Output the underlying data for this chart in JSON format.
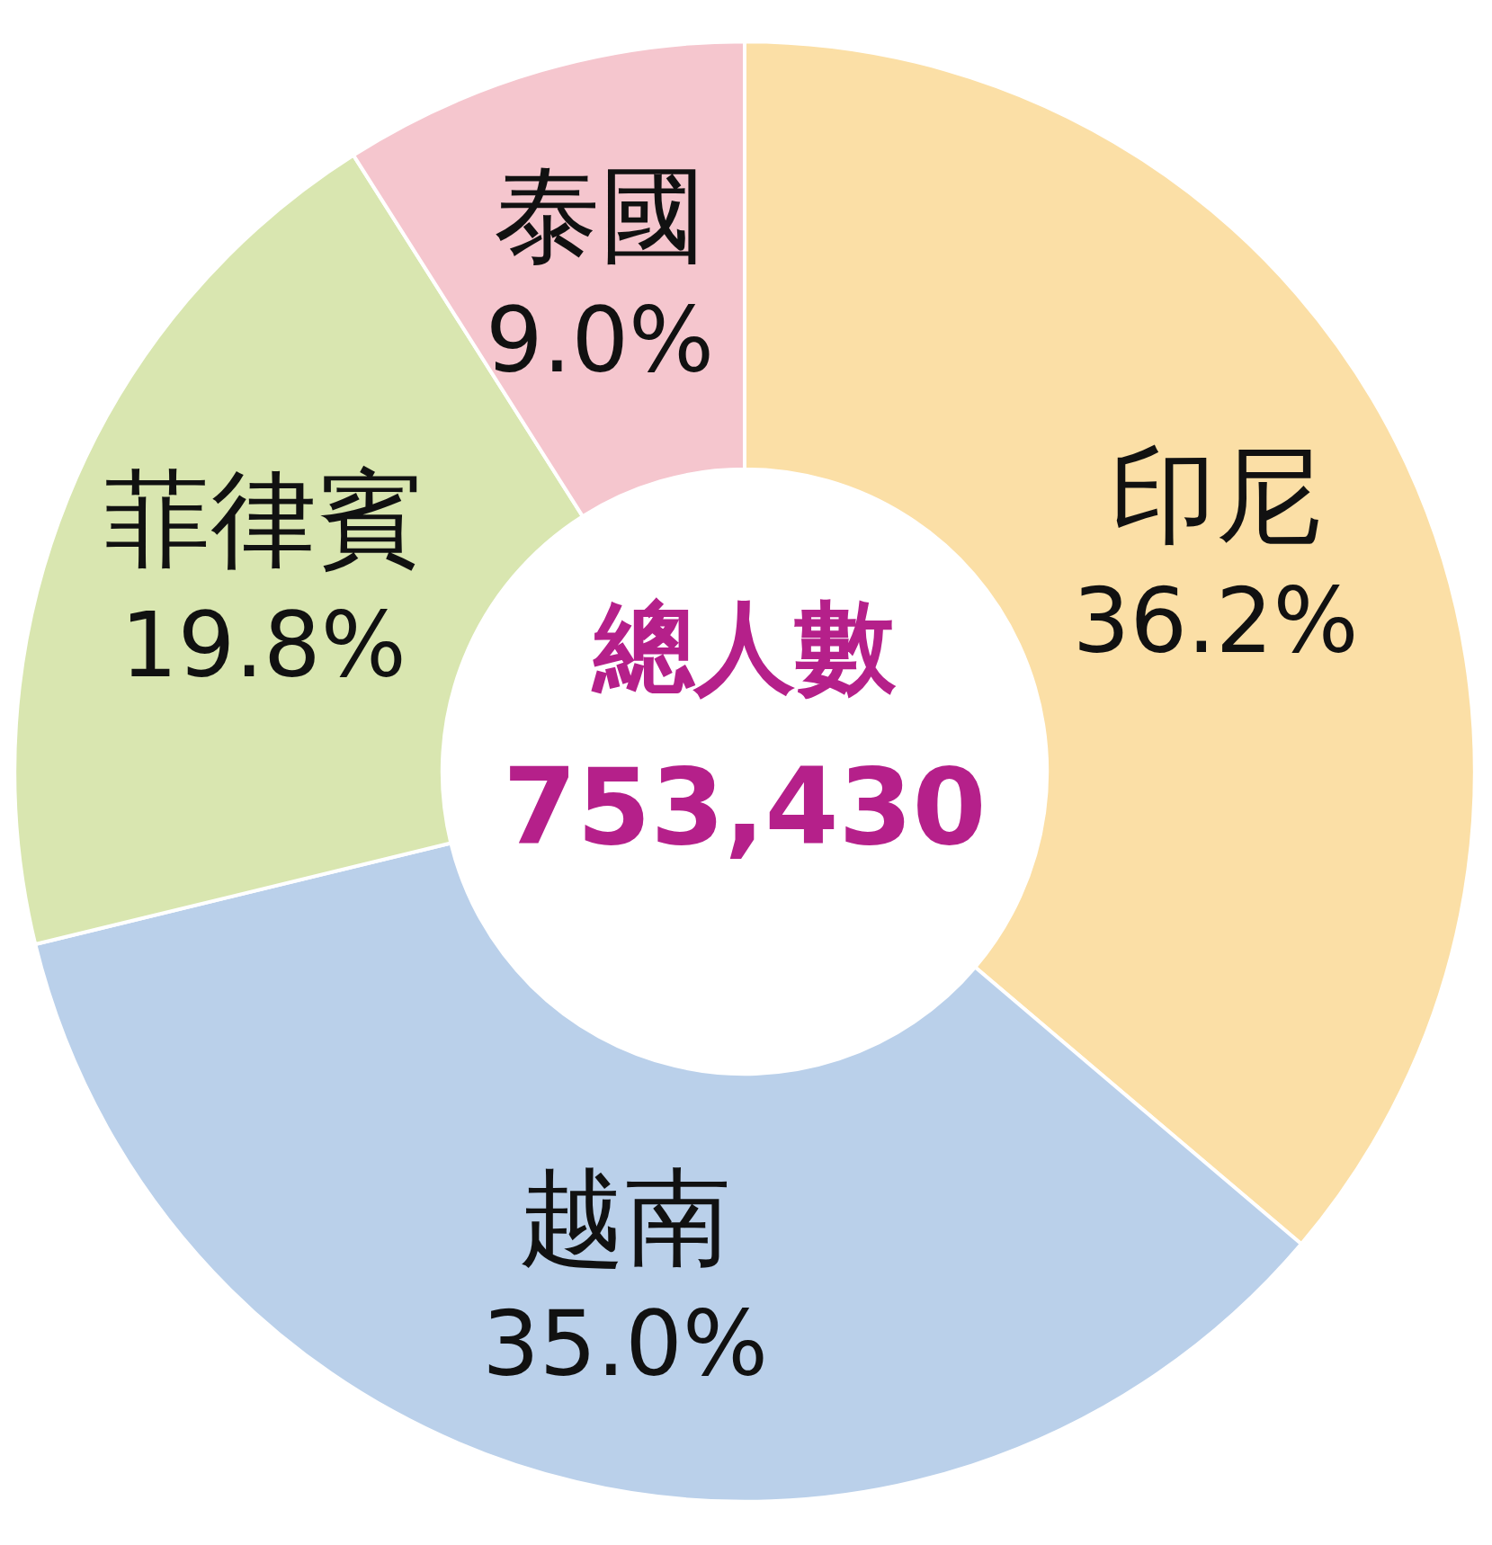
{
  "chart_data": {
    "type": "donut",
    "title": "總人數",
    "subtitle": "753,430",
    "categories": [
      "印尼",
      "越南",
      "菲律賓",
      "泰國"
    ],
    "values": [
      36.2,
      35.0,
      19.8,
      9.0
    ],
    "value_labels": [
      "36.2%",
      "35.0%",
      "19.8%",
      "9.0%"
    ],
    "colors": [
      "#fbdfa6",
      "#bad0ea",
      "#d9e6b0",
      "#f5c6ce"
    ],
    "legend": false
  }
}
